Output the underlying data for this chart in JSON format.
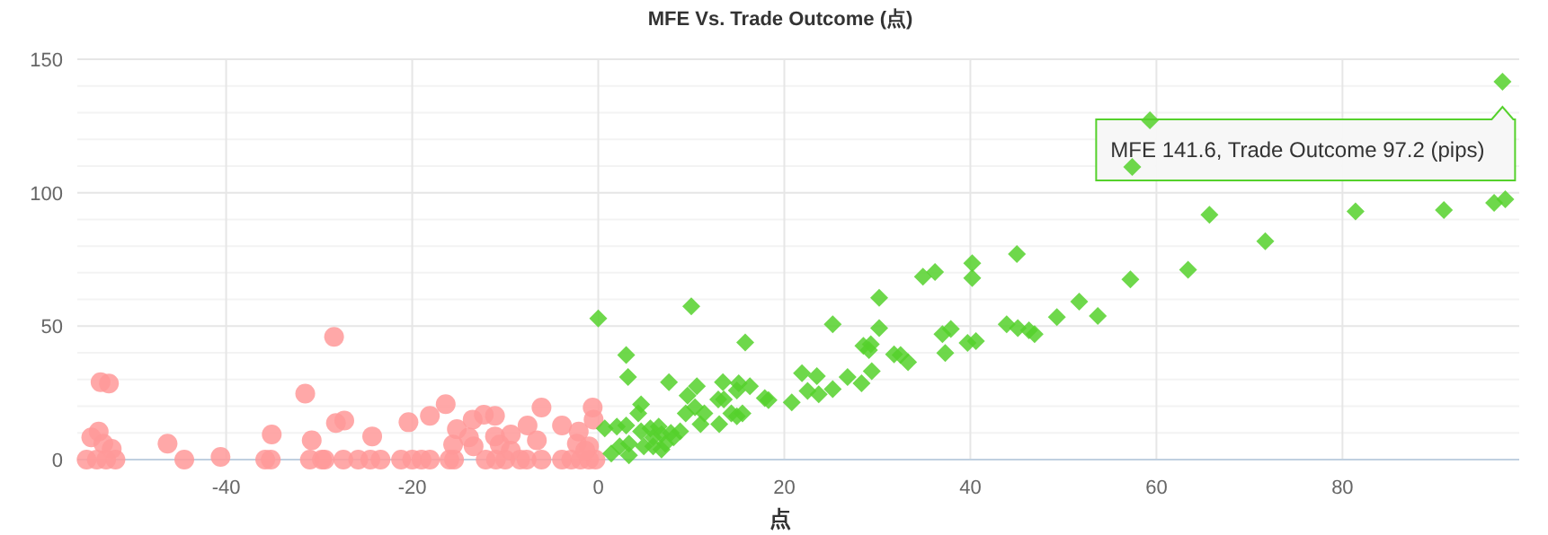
{
  "chart_data": {
    "type": "scatter",
    "title": "MFE Vs. Trade Outcome (点)",
    "xlabel": "点",
    "xlim": [
      -56,
      99
    ],
    "ylim": [
      0,
      150
    ],
    "xticks": [
      -40,
      -20,
      0,
      20,
      40,
      60,
      80
    ],
    "yticks": [
      0,
      {
        "value": 10,
        "label": null
      },
      {
        "value": 20,
        "label": null
      },
      {
        "value": 30,
        "label": null
      },
      {
        "value": 40,
        "label": null
      },
      50,
      {
        "value": 60,
        "label": null
      },
      {
        "value": 70,
        "label": null
      },
      {
        "value": 80,
        "label": null
      },
      {
        "value": 90,
        "label": null
      },
      100,
      {
        "value": 110,
        "label": null
      },
      {
        "value": 120,
        "label": null
      },
      {
        "value": 130,
        "label": null
      },
      {
        "value": 140,
        "label": null
      },
      150
    ],
    "grid": true,
    "series": [
      {
        "color": "#ff9999",
        "marker": "circle",
        "x": [
          -53.5,
          -52.6,
          -54.5,
          -53.7,
          -53.2,
          -55,
          -53.9,
          -52.9,
          -51.9,
          -52.3,
          -46.3,
          -44.5,
          -40.6,
          -35.8,
          -35.2,
          -35.1,
          -31.5,
          -30.8,
          -31,
          -29.7,
          -29.4,
          -28.4,
          -28.2,
          -27.3,
          -27.4,
          -25.8,
          -24.5,
          -23.4,
          -24.3,
          -21.2,
          -20,
          -19,
          -18.1,
          -20.4,
          -18.1,
          -16.4,
          -16,
          -15.5,
          -15.2,
          -15.6,
          -13.5,
          -13.9,
          -13.4,
          -12.3,
          -11.1,
          -12.1,
          -11,
          -10,
          -11.1,
          -10.6,
          -9.4,
          -9.4,
          -8.4,
          -7.7,
          -6.1,
          -7.6,
          -6.6,
          -6.1,
          -3.9,
          -3.9,
          -2.9,
          -1.9,
          -1,
          -0.3,
          -2.1,
          -2.3,
          -0.6,
          -0.5,
          -1,
          -1.4
        ],
        "values": [
          29,
          28.5,
          8.3,
          10.5,
          6,
          0,
          0,
          0,
          0,
          4,
          6,
          0,
          1,
          0,
          0,
          9.4,
          24.7,
          7.2,
          0,
          0,
          0,
          46,
          13.7,
          14.6,
          0,
          0,
          0,
          0,
          8.7,
          0,
          0,
          0,
          0,
          14,
          16.4,
          20.8,
          0,
          0,
          11.4,
          5.6,
          15,
          8.3,
          5,
          16.8,
          16.4,
          0,
          0,
          0,
          8.7,
          5.6,
          9.4,
          3.4,
          0,
          0,
          0,
          12.8,
          7.2,
          19.5,
          12.8,
          0,
          0,
          0,
          0,
          0,
          10.5,
          6,
          19.5,
          15,
          5,
          3.4
        ]
      },
      {
        "color": "#55d12c",
        "marker": "diamond",
        "x": [
          0,
          10,
          15.8,
          3,
          3.2,
          7.6,
          10.6,
          9.6,
          13.4,
          12.9,
          13.5,
          15.1,
          14.9,
          16.3,
          17.9,
          18.3,
          20.8,
          21.9,
          22.5,
          23.5,
          23.7,
          25.2,
          25.2,
          26.8,
          28.3,
          28.5,
          29.3,
          29.1,
          29.4,
          30.2,
          30.2,
          31.8,
          32.5,
          33.3,
          34.9,
          36.2,
          37,
          37.9,
          37.3,
          40.2,
          40.2,
          39.7,
          40.6,
          45,
          43.9,
          45.1,
          46.3,
          46.9,
          49.3,
          51.7,
          53.7,
          57.2,
          57.4,
          59.3,
          63.4,
          65.7,
          71.7,
          81.4,
          90.9,
          96.3,
          97.5,
          97.2,
          4.6,
          4.3,
          0.7,
          2,
          3,
          1.4,
          2.3,
          3.3,
          4.9,
          5.9,
          6.8,
          7.8,
          8.8,
          5.6,
          6.5,
          9.4,
          10.4,
          11,
          13,
          7.2,
          8.1,
          4.6,
          15.5,
          14.9,
          14.3,
          11.4,
          5.9,
          6.8,
          3.3
        ],
        "values": [
          52.9,
          57.4,
          43.9,
          39.2,
          30.9,
          29,
          27.5,
          24,
          29,
          22.5,
          22.5,
          28.6,
          25.9,
          27.5,
          23,
          22.3,
          21.4,
          32.4,
          25.7,
          31.3,
          24.5,
          50.7,
          26.4,
          30.9,
          28.6,
          42.6,
          43.2,
          41,
          33.1,
          60.6,
          49.3,
          39.4,
          39.2,
          36.5,
          68.5,
          70.3,
          47,
          48.9,
          39.9,
          73.6,
          68,
          43.7,
          44.4,
          77,
          50.7,
          49.3,
          48.4,
          47,
          53.4,
          59.2,
          53.8,
          67.5,
          109.6,
          127.1,
          71.1,
          91.7,
          81.8,
          93,
          93.5,
          96.2,
          97.5,
          141.6,
          20.7,
          17.3,
          11.7,
          12.4,
          12.8,
          2.3,
          5,
          6,
          5,
          8.3,
          9.5,
          10,
          10.6,
          11.7,
          12.4,
          17.3,
          19.6,
          13.3,
          13.3,
          6,
          8.3,
          10.6,
          17.3,
          16.2,
          17.3,
          17.3,
          5,
          3.8,
          1.6
        ]
      }
    ],
    "annotations": [
      {
        "text": "MFE 141.6, Trade Outcome 97.2 (pips)",
        "x": 97.2,
        "y": 141.6
      }
    ]
  }
}
